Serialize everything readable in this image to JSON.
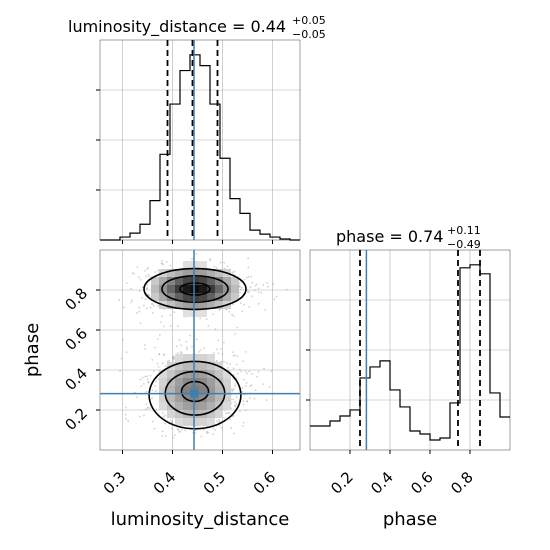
{
  "chart_data": {
    "type": "corner",
    "parameters": [
      "luminosity_distance",
      "phase"
    ],
    "colors": {
      "truth_line": "#3f7fb0",
      "hist_line": "#000000",
      "quantile_line": "#000000",
      "grid": "#b0b0b0",
      "axes_frame": "#888888"
    },
    "ranges": {
      "luminosity_distance": [
        0.255,
        0.655
      ],
      "phase": [
        0.0,
        1.0
      ]
    },
    "truth": {
      "luminosity_distance": 0.443,
      "phase": 0.282
    },
    "panels": [
      {
        "id": "hist-luminosity-distance",
        "type": "histogram",
        "parameter": "luminosity_distance",
        "title_text": "luminosity_distance = 0.44",
        "title_sup": "+0.05",
        "title_sub": "−0.05",
        "quantiles": [
          0.39,
          0.44,
          0.49
        ],
        "bin_edges": [
          0.255,
          0.275,
          0.295,
          0.315,
          0.335,
          0.355,
          0.375,
          0.395,
          0.415,
          0.435,
          0.455,
          0.475,
          0.495,
          0.515,
          0.535,
          0.555,
          0.575,
          0.595,
          0.615,
          0.635,
          0.655
        ],
        "counts": [
          0,
          0,
          3,
          7,
          16,
          40,
          87,
          138,
          172,
          188,
          177,
          138,
          83,
          42,
          27,
          10,
          6,
          3,
          1,
          0
        ],
        "xticks": [
          0.3,
          0.4,
          0.5,
          0.6
        ]
      },
      {
        "id": "hist-phase",
        "type": "histogram",
        "parameter": "phase",
        "title_text": "phase = 0.74",
        "title_sup": "+0.11",
        "title_sub": "−0.49",
        "quantiles": [
          0.25,
          0.74,
          0.85
        ],
        "bin_edges": [
          0.0,
          0.05,
          0.1,
          0.15,
          0.2,
          0.25,
          0.3,
          0.35,
          0.4,
          0.45,
          0.5,
          0.55,
          0.6,
          0.65,
          0.7,
          0.75,
          0.8,
          0.85,
          0.9,
          0.95,
          1.0
        ],
        "counts": [
          24,
          24,
          29,
          34,
          40,
          72,
          83,
          89,
          60,
          43,
          19,
          16,
          10,
          12,
          47,
          182,
          185,
          176,
          57,
          33
        ],
        "xticks": [
          0.2,
          0.4,
          0.6,
          0.8
        ],
        "xticklabels": [
          "0.2",
          "0.4",
          "0.6",
          "0.8"
        ]
      },
      {
        "id": "joint-luminosity-distance-phase",
        "type": "2d-density",
        "x_parameter": "luminosity_distance",
        "y_parameter": "phase",
        "xticks": [
          0.3,
          0.4,
          0.5,
          0.6
        ],
        "xticklabels": [
          "0.3",
          "0.4",
          "0.5",
          "0.6"
        ],
        "yticks": [
          0.2,
          0.4,
          0.6,
          0.8
        ],
        "yticklabels": [
          "0.2",
          "0.4",
          "0.6",
          "0.8"
        ],
        "modes": [
          {
            "center": [
              0.445,
              0.805
            ],
            "spread": [
              0.05,
              0.06
            ]
          },
          {
            "center": [
              0.445,
              0.3
            ],
            "spread": [
              0.045,
              0.11
            ]
          }
        ]
      }
    ],
    "xlabels": [
      "luminosity_distance",
      "phase"
    ],
    "ylabel": "phase"
  }
}
